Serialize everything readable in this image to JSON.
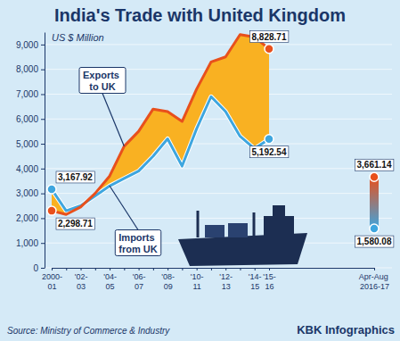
{
  "chart_data": {
    "type": "line",
    "title": "India's Trade with United Kingdom",
    "subtitle": "US $ Million",
    "source": "Source: Ministry of Commerce & Industry",
    "credit": "KBK Infographics",
    "categories": [
      "2000-01",
      null,
      "'02-03",
      null,
      "'04-05",
      null,
      "'06-07",
      null,
      "'08-09",
      null,
      "'10-11",
      null,
      "'12-13",
      null,
      "'14-15",
      "'15-16",
      "Apr-Aug 2016-17"
    ],
    "series": [
      {
        "name": "Exports to UK",
        "color": "#e8501c",
        "values": [
          2298.71,
          2150,
          2450,
          3000,
          3700,
          4900,
          5500,
          6400,
          6300,
          5900,
          7200,
          8300,
          8500,
          9400,
          9300,
          8828.71,
          3661.14
        ],
        "value_labels": [
          "2,298.71",
          null,
          null,
          null,
          null,
          null,
          null,
          null,
          null,
          null,
          null,
          null,
          null,
          null,
          null,
          "8,828.71",
          "3,661.14"
        ]
      },
      {
        "name": "Imports from UK",
        "color": "#3ea6df",
        "values": [
          3167.92,
          2300,
          2500,
          2900,
          3300,
          3600,
          3900,
          4500,
          5200,
          4100,
          5600,
          6900,
          6300,
          5300,
          4800,
          5192.54,
          1580.08
        ],
        "value_labels": [
          "3,167.92",
          null,
          null,
          null,
          null,
          null,
          null,
          null,
          null,
          null,
          null,
          null,
          null,
          null,
          null,
          "5,192.54",
          "1,580.08"
        ]
      }
    ],
    "color": "#f9b122",
    "ylim": [
      0,
      9500
    ],
    "yticks": [
      0,
      {
        "value": 1000,
        "label": "1,000"
      },
      {
        "value": 2000,
        "label": "2,000"
      },
      {
        "value": 3000,
        "label": "3,000"
      },
      {
        "value": 4000,
        "label": "4,000"
      },
      {
        "value": 5000,
        "label": "5,000"
      },
      {
        "value": 6000,
        "label": "6,000"
      },
      {
        "value": 7000,
        "label": "7,000"
      },
      {
        "value": 8000,
        "label": "8,000"
      },
      {
        "value": 9000,
        "label": "9,000"
      }
    ],
    "grid": true,
    "data_labels": true
  }
}
